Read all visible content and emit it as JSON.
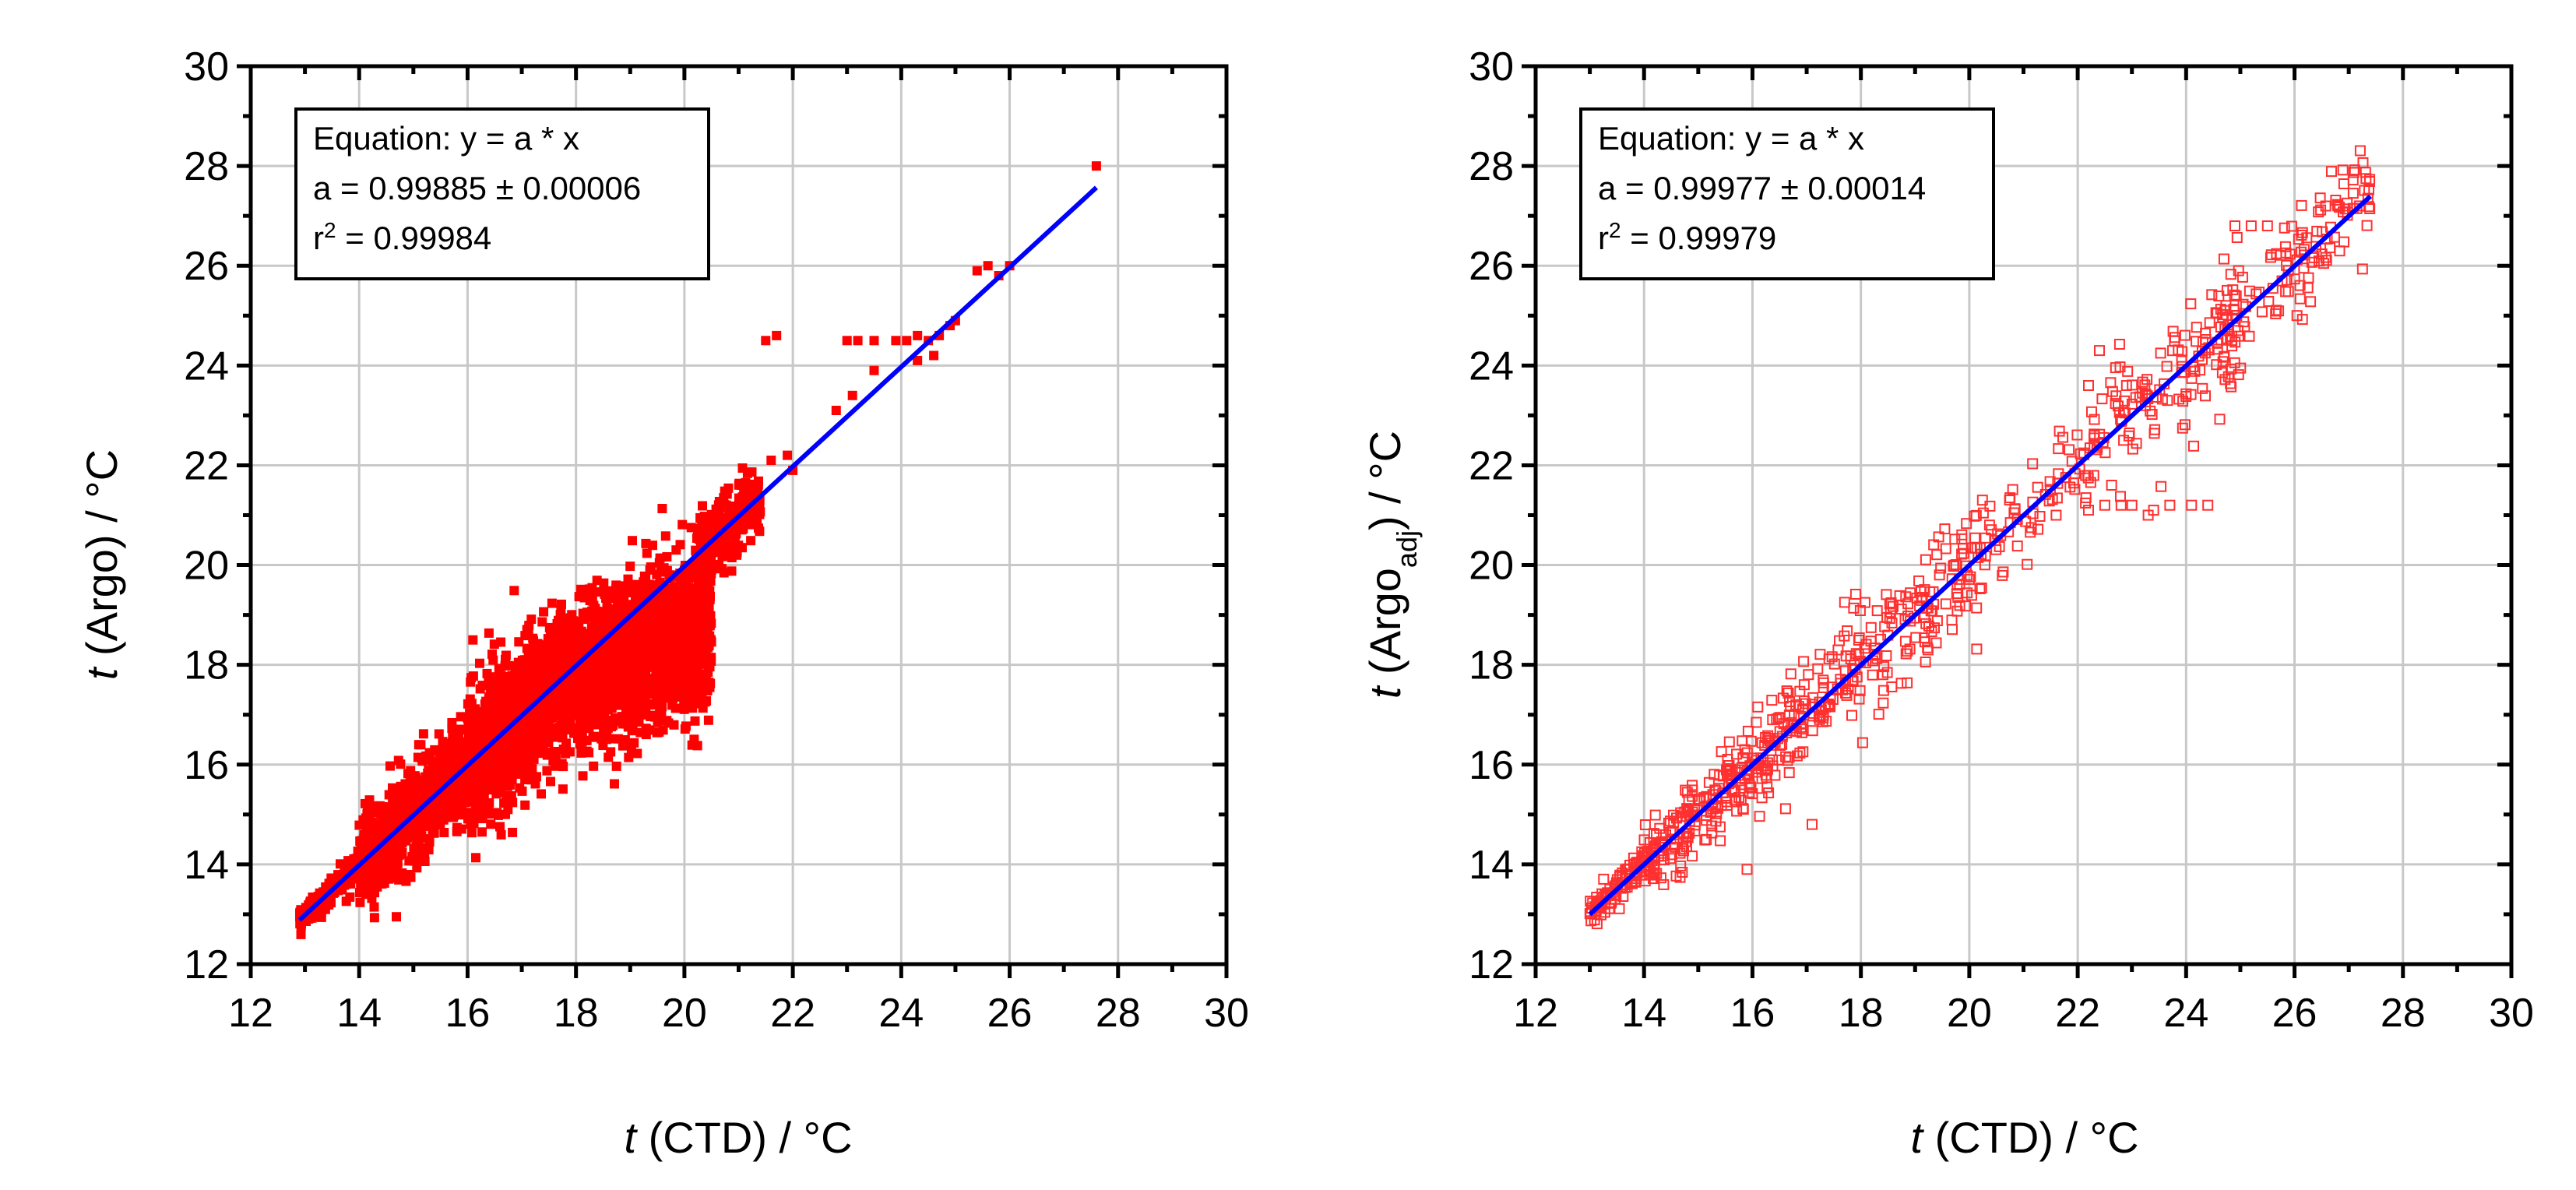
{
  "chart_data": [
    {
      "type": "scatter",
      "xlabel": {
        "italic": "t",
        "rest": " (CTD) / °C"
      },
      "ylabel": {
        "italic": "t",
        "rest": " (Argo) / °C"
      },
      "xlim": [
        12,
        30
      ],
      "ylim": [
        12,
        30
      ],
      "xticks": [
        "12",
        "14",
        "16",
        "18",
        "20",
        "22",
        "24",
        "26",
        "28",
        "30"
      ],
      "yticks": [
        "12",
        "14",
        "16",
        "18",
        "20",
        "22",
        "24",
        "26",
        "28",
        "30"
      ],
      "grid": true,
      "equation": {
        "line1": "Equation: y = a * x",
        "line2": "a = 0.99885 ± 0.00006",
        "r_prefix": "r",
        "r_sup": "2",
        "r_rest": " = 0.99984"
      },
      "marker": "filled-square",
      "marker_color": "#ff0000",
      "fit_color": "#0000ff",
      "fit": {
        "slope": 0.99885,
        "x_start": 12.9,
        "x_end": 27.6
      },
      "clusters": [
        {
          "x": [
            12.9,
            14.2
          ],
          "slope": 1.0,
          "offset": 0.0,
          "spread": 0.12,
          "n": 260
        },
        {
          "x": [
            14.0,
            16.0
          ],
          "slope": 1.0,
          "offset": 0.0,
          "spread": 0.45,
          "n": 900
        },
        {
          "x": [
            16.0,
            18.0
          ],
          "slope": 1.0,
          "offset": 0.0,
          "spread": 0.7,
          "n": 1200
        },
        {
          "x": [
            18.0,
            20.5
          ],
          "slope": 0.45,
          "offset": 9.6,
          "spread": 0.75,
          "n": 1700
        },
        {
          "x": [
            20.2,
            21.4
          ],
          "slope": 0.9,
          "offset": 2.0,
          "spread": 0.35,
          "n": 260
        }
      ],
      "points": [
        [
          21.6,
          22.1
        ],
        [
          21.9,
          22.2
        ],
        [
          22.0,
          21.9
        ],
        [
          21.7,
          24.6
        ],
        [
          21.5,
          24.5
        ],
        [
          22.8,
          23.1
        ],
        [
          23.1,
          23.4
        ],
        [
          23.0,
          24.5
        ],
        [
          23.2,
          24.5
        ],
        [
          23.5,
          23.9
        ],
        [
          23.5,
          24.5
        ],
        [
          23.9,
          24.5
        ],
        [
          24.1,
          24.5
        ],
        [
          24.3,
          24.6
        ],
        [
          24.5,
          24.5
        ],
        [
          24.7,
          24.6
        ],
        [
          24.9,
          24.8
        ],
        [
          25.0,
          24.9
        ],
        [
          24.6,
          24.2
        ],
        [
          24.3,
          24.1
        ],
        [
          25.4,
          25.9
        ],
        [
          25.6,
          26.0
        ],
        [
          25.8,
          25.8
        ],
        [
          26.0,
          26.0
        ],
        [
          27.6,
          28.0
        ]
      ]
    },
    {
      "type": "scatter",
      "xlabel": {
        "italic": "t",
        "rest": " (CTD) / °C"
      },
      "ylabel": {
        "italic": "t",
        "open": " (Argo",
        "sub": "adj",
        "close": ") / °C"
      },
      "xlim": [
        12,
        30
      ],
      "ylim": [
        12,
        30
      ],
      "xticks": [
        "12",
        "14",
        "16",
        "18",
        "20",
        "22",
        "24",
        "26",
        "28",
        "30"
      ],
      "yticks": [
        "12",
        "14",
        "16",
        "18",
        "20",
        "22",
        "24",
        "26",
        "28",
        "30"
      ],
      "grid": true,
      "equation": {
        "line1": "Equation: y = a * x",
        "line2": "a = 0.99977 ± 0.00014",
        "r_prefix": "r",
        "r_sup": "2",
        "r_rest": " = 0.99979"
      },
      "marker": "open-square",
      "marker_color": "#ff3030",
      "fit_color": "#0000ff",
      "fit": {
        "slope": 0.99977,
        "x_start": 13.0,
        "x_end": 27.4
      },
      "clusters": [
        {
          "x": [
            13.0,
            14.2
          ],
          "slope": 1.0,
          "offset": 0.0,
          "spread": 0.15,
          "n": 110
        },
        {
          "x": [
            14.0,
            16.0
          ],
          "slope": 1.0,
          "offset": 0.0,
          "spread": 0.35,
          "n": 170
        },
        {
          "x": [
            16.0,
            18.0
          ],
          "slope": 1.0,
          "offset": 0.0,
          "spread": 0.55,
          "n": 150
        },
        {
          "x": [
            18.0,
            20.3
          ],
          "slope": 1.0,
          "offset": 0.0,
          "spread": 0.6,
          "n": 130
        },
        {
          "x": [
            20.3,
            22.0
          ],
          "slope": 1.0,
          "offset": 0.0,
          "spread": 0.55,
          "n": 50
        },
        {
          "x": [
            22.0,
            25.0
          ],
          "slope": 1.0,
          "offset": 0.0,
          "spread": 0.7,
          "n": 140
        },
        {
          "x": [
            24.6,
            27.4
          ],
          "slope": 1.0,
          "offset": 0.0,
          "spread": 0.6,
          "n": 120
        }
      ],
      "points": [
        [
          22.2,
          21.1
        ],
        [
          22.5,
          21.2
        ],
        [
          22.8,
          21.2
        ],
        [
          23.0,
          21.2
        ],
        [
          23.4,
          21.1
        ],
        [
          23.7,
          21.2
        ],
        [
          24.1,
          21.2
        ],
        [
          24.4,
          21.2
        ],
        [
          23.3,
          21.0
        ],
        [
          22.4,
          24.3
        ],
        [
          22.2,
          23.6
        ],
        [
          22.9,
          23.6
        ],
        [
          17.1,
          14.8
        ],
        [
          15.9,
          13.9
        ],
        [
          24.9,
          26.8
        ],
        [
          25.2,
          26.8
        ],
        [
          25.5,
          26.8
        ],
        [
          26.8,
          27.2
        ],
        [
          27.2,
          27.2
        ]
      ]
    }
  ]
}
